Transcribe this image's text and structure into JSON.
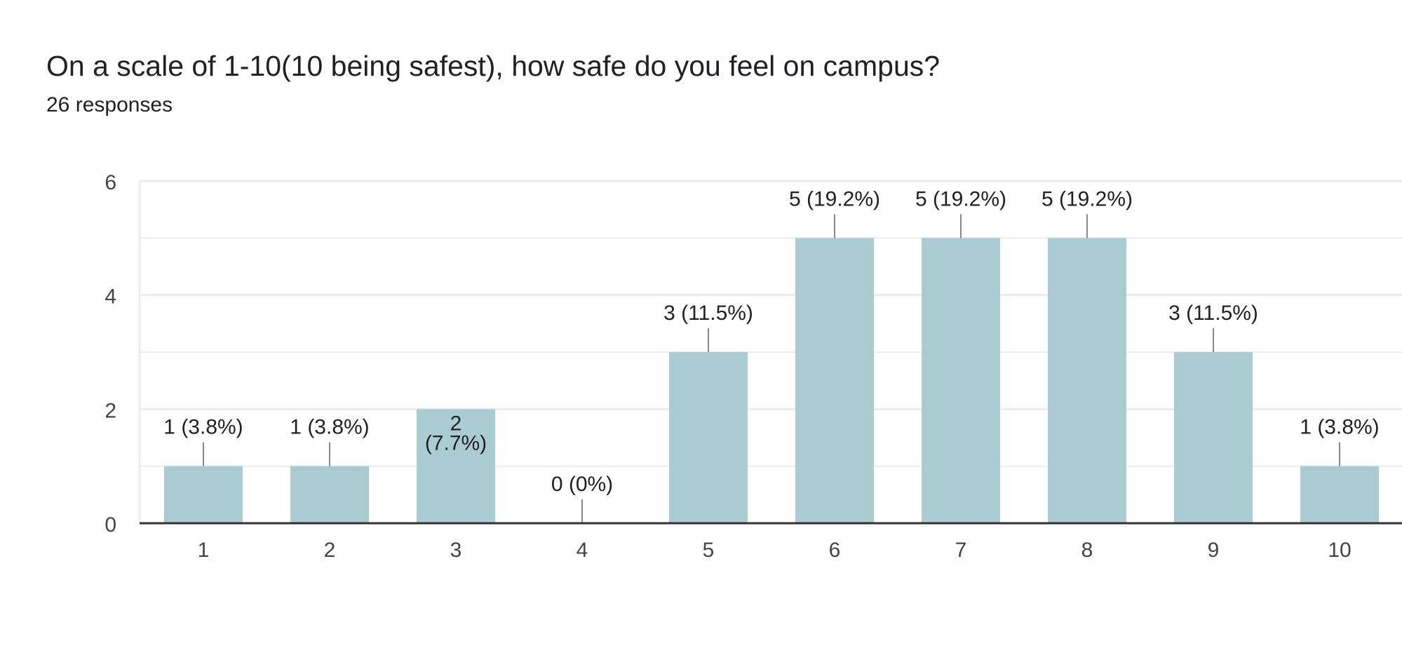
{
  "header": {
    "title": "On a scale of 1-10(10 being safest), how safe do you feel on campus?",
    "subtitle": "26 responses"
  },
  "colors": {
    "bar": "#aacbd2",
    "text": "#202124",
    "axis_text": "#444444",
    "gridline": "#ececec",
    "axis_line": "#333333",
    "leader_line": "#888888"
  },
  "chart_data": {
    "type": "bar",
    "title": "On a scale of 1-10(10 being safest), how safe do you feel on campus?",
    "categories": [
      "1",
      "2",
      "3",
      "4",
      "5",
      "6",
      "7",
      "8",
      "9",
      "10"
    ],
    "values": [
      1,
      1,
      2,
      0,
      3,
      5,
      5,
      5,
      3,
      1
    ],
    "data_labels": [
      "1 (3.8%)",
      "1 (3.8%)",
      "2 (7.7%)",
      "0 (0%)",
      "3 (11.5%)",
      "5 (19.2%)",
      "5 (19.2%)",
      "5 (19.2%)",
      "3 (11.5%)",
      "1 (3.8%)"
    ],
    "ylim": [
      0,
      6
    ],
    "yticks": [
      0,
      2,
      4,
      6
    ],
    "grid": true,
    "xlabel": "",
    "ylabel": ""
  }
}
